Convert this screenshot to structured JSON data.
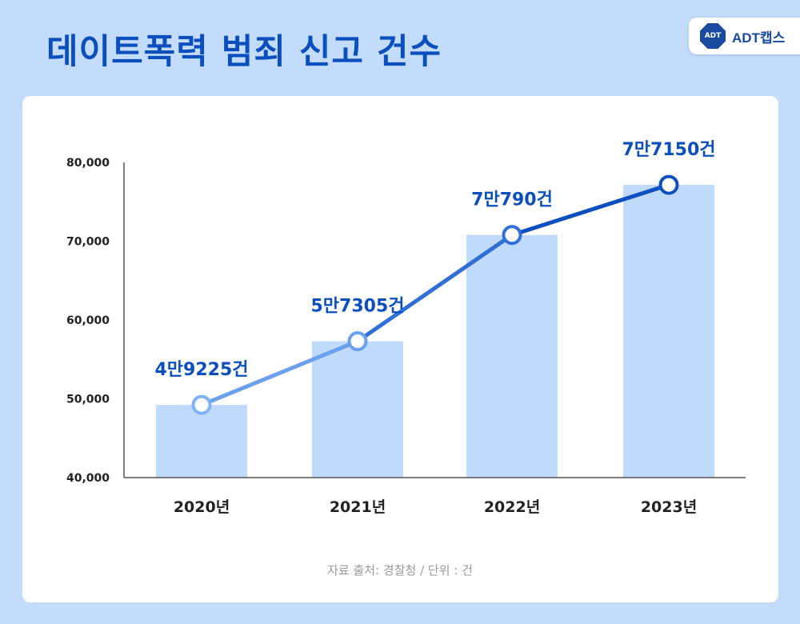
{
  "title": "데이트폭력 범죄 신고 건수",
  "logo": {
    "badge": "ADT",
    "text": "ADT캡스"
  },
  "source": "자료 출처: 경찰청 / 단위 : 건",
  "colors": {
    "background": "#c3dcfc",
    "bar": "#c0dafc",
    "title": "#0b4fbf",
    "label": "#0b4fbf",
    "marker_strokes": [
      "#7fb3f5",
      "#6aa0ee",
      "#2f6fd6",
      "#0d4fbf"
    ]
  },
  "chart_data": {
    "type": "bar+line",
    "categories": [
      "2020년",
      "2021년",
      "2022년",
      "2023년"
    ],
    "values": [
      49225,
      57305,
      70790,
      77150
    ],
    "data_labels": [
      "4만9225건",
      "5만7305건",
      "7만790건",
      "7만7150건"
    ],
    "ylim": [
      40000,
      80000
    ],
    "yticks": [
      "40,000",
      "50,000",
      "60,000",
      "70,000",
      "80,000"
    ],
    "grid": false,
    "legend": "none"
  }
}
